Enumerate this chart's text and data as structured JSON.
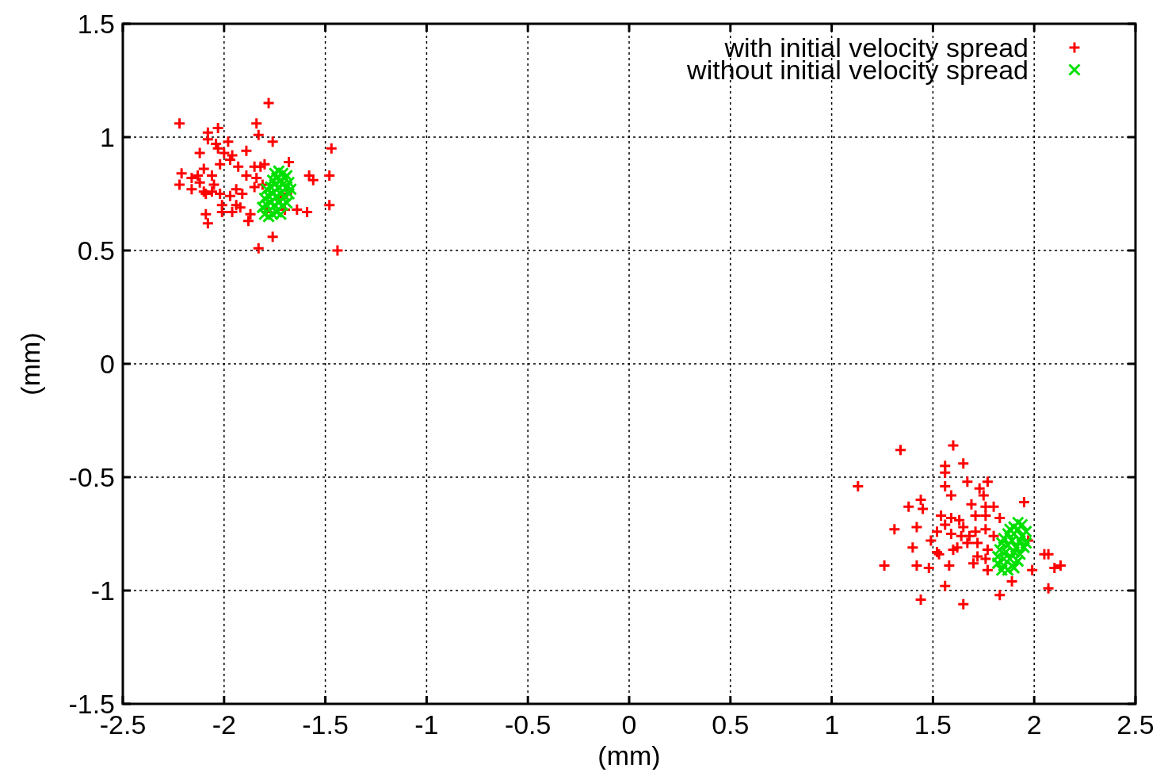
{
  "chart_data": {
    "type": "scatter",
    "xlabel": "(mm)",
    "ylabel": "(mm)",
    "xlim": [
      -2.5,
      2.5
    ],
    "ylim": [
      -1.5,
      1.5
    ],
    "xticks": [
      -2.5,
      -2,
      -1.5,
      -1,
      -0.5,
      0,
      0.5,
      1,
      1.5,
      2,
      2.5
    ],
    "yticks": [
      -1.5,
      -1,
      -0.5,
      0,
      0.5,
      1,
      1.5
    ],
    "grid": true,
    "legend": "top right",
    "series": [
      {
        "name": "with initial velocity spread",
        "color": "#ff0000",
        "marker": "cross",
        "x": [
          -2.22,
          -2.08,
          -2.03,
          -2.08,
          -2.04,
          -1.98,
          -2.03,
          -2.12,
          -2.0,
          -1.96,
          -1.89,
          -1.97,
          -1.93,
          -2.02,
          -2.21,
          -2.16,
          -2.1,
          -2.06,
          -2.22,
          -2.16,
          -2.12,
          -2.05,
          -2.09,
          -2.02,
          -1.94,
          -1.91,
          -1.97,
          -2.01,
          -1.94,
          -1.92,
          -2.09,
          -2.08,
          -2.01,
          -1.96,
          -1.87,
          -1.88,
          -1.85,
          -1.84,
          -1.82,
          -1.8,
          -1.85,
          -1.89,
          -2.13,
          -2.06,
          -2.1,
          -1.78,
          -1.84,
          -1.83,
          -1.76,
          -1.47,
          -1.48,
          -1.48,
          -1.44,
          -1.83,
          -1.76,
          -1.68,
          -1.58,
          -1.56,
          -1.64,
          -1.59,
          -1.7,
          -1.72,
          -1.69,
          -1.79,
          -1.81,
          1.34,
          1.6,
          1.56,
          1.65,
          1.56,
          1.13,
          1.67,
          1.77,
          1.73,
          1.75,
          1.56,
          1.59,
          1.95,
          1.44,
          1.38,
          1.45,
          1.69,
          1.76,
          1.8,
          1.54,
          1.59,
          1.63,
          1.56,
          1.71,
          1.76,
          1.83,
          1.31,
          1.42,
          1.52,
          1.59,
          1.65,
          1.71,
          1.76,
          1.68,
          1.8,
          1.64,
          1.49,
          1.62,
          1.67,
          1.72,
          1.4,
          1.53,
          1.6,
          1.77,
          1.72,
          1.7,
          1.76,
          1.26,
          1.42,
          1.48,
          1.58,
          1.77,
          2.05,
          2.07,
          1.99,
          2.1,
          2.13,
          1.97,
          1.56,
          1.89,
          2.07,
          1.83,
          1.44,
          1.65,
          1.52
        ],
        "values": [
          1.06,
          1.02,
          1.04,
          0.99,
          0.97,
          0.98,
          0.95,
          0.93,
          0.93,
          0.92,
          0.94,
          0.9,
          0.87,
          0.88,
          0.84,
          0.82,
          0.86,
          0.83,
          0.79,
          0.77,
          0.8,
          0.79,
          0.75,
          0.75,
          0.77,
          0.75,
          0.74,
          0.7,
          0.7,
          0.69,
          0.66,
          0.62,
          0.67,
          0.67,
          0.66,
          0.63,
          0.87,
          0.82,
          0.87,
          0.88,
          0.78,
          0.83,
          0.83,
          0.76,
          0.76,
          1.15,
          1.06,
          1.01,
          0.98,
          0.95,
          0.83,
          0.7,
          0.5,
          0.51,
          0.56,
          0.89,
          0.83,
          0.81,
          0.68,
          0.67,
          0.68,
          0.73,
          0.75,
          0.67,
          0.79,
          -0.38,
          -0.36,
          -0.45,
          -0.44,
          -0.48,
          -0.54,
          -0.52,
          -0.52,
          -0.55,
          -0.58,
          -0.54,
          -0.58,
          -0.61,
          -0.6,
          -0.63,
          -0.64,
          -0.62,
          -0.63,
          -0.63,
          -0.67,
          -0.68,
          -0.69,
          -0.71,
          -0.67,
          -0.67,
          -0.68,
          -0.73,
          -0.72,
          -0.74,
          -0.75,
          -0.72,
          -0.74,
          -0.73,
          -0.76,
          -0.76,
          -0.76,
          -0.78,
          -0.81,
          -0.79,
          -0.79,
          -0.81,
          -0.84,
          -0.82,
          -0.82,
          -0.85,
          -0.88,
          -0.86,
          -0.89,
          -0.89,
          -0.9,
          -0.89,
          -0.91,
          -0.84,
          -0.84,
          -0.91,
          -0.9,
          -0.89,
          -0.78,
          -0.98,
          -0.96,
          -0.99,
          -1.02,
          -1.04,
          -1.06,
          -0.83
        ]
      },
      {
        "name": "without initial velocity spread",
        "color": "#00e000",
        "marker": "cross",
        "x": [
          -1.8,
          -1.78,
          -1.76,
          -1.74,
          -1.72,
          -1.81,
          -1.79,
          -1.77,
          -1.75,
          -1.73,
          -1.71,
          -1.69,
          -1.8,
          -1.78,
          -1.76,
          -1.74,
          -1.72,
          -1.7,
          -1.68,
          -1.79,
          -1.77,
          -1.75,
          -1.73,
          -1.71,
          -1.69,
          -1.67,
          -1.76,
          -1.74,
          -1.72,
          -1.7,
          -1.68,
          -1.75,
          -1.73,
          -1.71,
          -1.69,
          1.92,
          1.94,
          1.9,
          1.88,
          1.92,
          1.96,
          1.87,
          1.9,
          1.94,
          1.85,
          1.89,
          1.93,
          1.96,
          1.84,
          1.87,
          1.91,
          1.95,
          1.83,
          1.86,
          1.9,
          1.93,
          1.82,
          1.85,
          1.88,
          1.92,
          1.82,
          1.85,
          1.89,
          1.84,
          1.87,
          1.9
        ],
        "values": [
          0.66,
          0.65,
          0.66,
          0.67,
          0.66,
          0.69,
          0.7,
          0.71,
          0.7,
          0.71,
          0.7,
          0.71,
          0.73,
          0.74,
          0.75,
          0.74,
          0.75,
          0.74,
          0.75,
          0.77,
          0.78,
          0.79,
          0.78,
          0.79,
          0.78,
          0.77,
          0.81,
          0.82,
          0.81,
          0.82,
          0.8,
          0.84,
          0.85,
          0.84,
          0.83,
          -0.7,
          -0.71,
          -0.72,
          -0.73,
          -0.73,
          -0.74,
          -0.75,
          -0.75,
          -0.76,
          -0.77,
          -0.78,
          -0.78,
          -0.79,
          -0.79,
          -0.8,
          -0.81,
          -0.81,
          -0.82,
          -0.83,
          -0.83,
          -0.84,
          -0.85,
          -0.86,
          -0.86,
          -0.87,
          -0.88,
          -0.89,
          -0.89,
          -0.91,
          -0.91,
          -0.9
        ]
      }
    ]
  }
}
